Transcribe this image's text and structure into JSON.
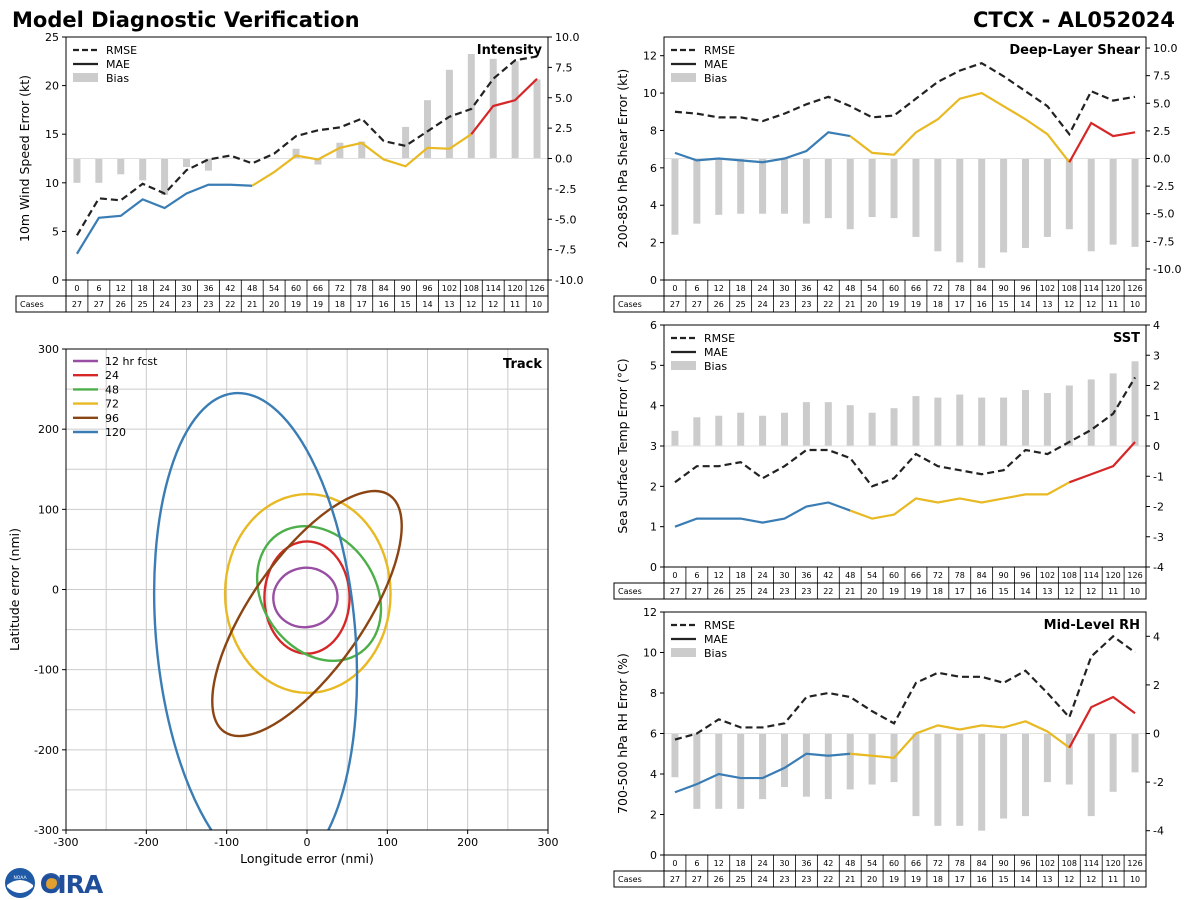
{
  "header": {
    "title_left": "Model Diagnostic Verification",
    "title_right": "CTCX - AL052024"
  },
  "logo": {
    "noaa_text": "NOAA",
    "cira_text": "CIRA"
  },
  "legend_labels": {
    "rmse": "RMSE",
    "mae": "MAE",
    "bias": "Bias"
  },
  "colors": {
    "rmse": "#222222",
    "bias": "#cccccc",
    "seg1": "#3a7db5",
    "seg2": "#e8b923",
    "seg3": "#d62728",
    "grid": "#cccccc",
    "axis": "#000000"
  },
  "cases_label": "Cases",
  "hours": [
    0,
    6,
    12,
    18,
    24,
    30,
    36,
    42,
    48,
    54,
    60,
    66,
    72,
    78,
    84,
    90,
    96,
    102,
    108,
    114,
    120,
    126
  ],
  "cases": [
    27,
    27,
    26,
    25,
    24,
    23,
    23,
    22,
    21,
    20,
    19,
    19,
    18,
    17,
    16,
    15,
    14,
    13,
    12,
    12,
    11,
    10
  ],
  "chart_data": [
    {
      "id": "intensity",
      "type": "line+bar",
      "title": "Intensity",
      "ylabel": "10m Wind Speed Error (kt)",
      "ylim": [
        0,
        25
      ],
      "yticks": [
        0,
        5,
        10,
        15,
        20,
        25
      ],
      "y2lim": [
        -10,
        10
      ],
      "y2ticks": [
        "-10.0",
        "-7.5",
        "-5.0",
        "-2.5",
        "0.0",
        "2.5",
        "5.0",
        "7.5",
        "10.0"
      ],
      "rmse": [
        4.6,
        8.4,
        8.2,
        9.9,
        8.9,
        11.3,
        12.4,
        12.8,
        12.0,
        13.0,
        14.8,
        15.4,
        15.7,
        16.6,
        14.3,
        13.8,
        15.3,
        16.8,
        17.6,
        20.7,
        22.6,
        23.0
      ],
      "mae": [
        2.7,
        6.4,
        6.6,
        8.3,
        7.4,
        8.9,
        9.8,
        9.8,
        9.7,
        11.1,
        12.8,
        12.4,
        13.6,
        14.1,
        12.4,
        11.7,
        13.6,
        13.5,
        15.0,
        17.9,
        18.5,
        20.7
      ],
      "bias": [
        -2.0,
        -2.0,
        -1.3,
        -1.8,
        -3.0,
        -0.7,
        -1.0,
        0.0,
        0.0,
        0.0,
        0.8,
        -0.5,
        1.3,
        1.4,
        0.0,
        2.6,
        4.8,
        7.3,
        8.6,
        8.2,
        8.0,
        6.5
      ]
    },
    {
      "id": "shear",
      "type": "line+bar",
      "title": "Deep-Layer Shear",
      "ylabel": "200-850 hPa Shear Error (kt)",
      "ylim": [
        0,
        13
      ],
      "yticks": [
        0,
        2,
        4,
        6,
        8,
        10,
        12
      ],
      "y2lim": [
        -11,
        11
      ],
      "y2ticks": [
        "-10.0",
        "-7.5",
        "-5.0",
        "-2.5",
        "0.0",
        "2.5",
        "5.0",
        "7.5",
        "10.0"
      ],
      "rmse": [
        9.0,
        8.9,
        8.7,
        8.7,
        8.5,
        8.9,
        9.4,
        9.8,
        9.3,
        8.7,
        8.8,
        9.7,
        10.6,
        11.2,
        11.6,
        10.9,
        10.1,
        9.3,
        7.8,
        10.1,
        9.6,
        9.8
      ],
      "mae": [
        6.8,
        6.4,
        6.5,
        6.4,
        6.3,
        6.5,
        6.9,
        7.9,
        7.7,
        6.8,
        6.7,
        7.9,
        8.6,
        9.7,
        10.0,
        9.3,
        8.6,
        7.8,
        6.3,
        8.4,
        7.7,
        7.9
      ],
      "bias": [
        -6.9,
        -5.9,
        -5.1,
        -5.0,
        -5.0,
        -5.0,
        -5.9,
        -5.4,
        -6.4,
        -5.3,
        -5.4,
        -7.1,
        -8.4,
        -9.4,
        -9.9,
        -8.5,
        -8.1,
        -7.1,
        -6.4,
        -8.4,
        -7.8,
        -8.0
      ]
    },
    {
      "id": "sst",
      "type": "line+bar",
      "title": "SST",
      "ylabel": "Sea Surface Temp Error (°C)",
      "ylim": [
        0,
        6
      ],
      "yticks": [
        0,
        1,
        2,
        3,
        4,
        5,
        6
      ],
      "y2lim": [
        -4,
        4
      ],
      "y2ticks": [
        "-4",
        "-3",
        "-2",
        "-1",
        "0",
        "1",
        "2",
        "3",
        "4"
      ],
      "rmse": [
        2.1,
        2.5,
        2.5,
        2.6,
        2.2,
        2.5,
        2.9,
        2.9,
        2.7,
        2.0,
        2.2,
        2.8,
        2.5,
        2.4,
        2.3,
        2.4,
        2.9,
        2.8,
        3.1,
        3.4,
        3.8,
        4.7
      ],
      "mae": [
        1.0,
        1.2,
        1.2,
        1.2,
        1.1,
        1.2,
        1.5,
        1.6,
        1.4,
        1.2,
        1.3,
        1.7,
        1.6,
        1.7,
        1.6,
        1.7,
        1.8,
        1.8,
        2.1,
        2.3,
        2.5,
        3.1
      ],
      "bias": [
        0.5,
        0.95,
        1.0,
        1.1,
        1.0,
        1.1,
        1.45,
        1.45,
        1.35,
        1.1,
        1.25,
        1.65,
        1.6,
        1.7,
        1.6,
        1.6,
        1.85,
        1.75,
        2.0,
        2.2,
        2.4,
        2.8
      ]
    },
    {
      "id": "rh",
      "type": "line+bar",
      "title": "Mid-Level RH",
      "ylabel": "700-500 hPa RH Error (%)",
      "ylim": [
        0,
        12
      ],
      "yticks": [
        0,
        2,
        4,
        6,
        8,
        10,
        12
      ],
      "y2lim": [
        -5,
        5
      ],
      "y2ticks": [
        "-4",
        "-2",
        "0",
        "2",
        "4"
      ],
      "rmse": [
        5.7,
        6.0,
        6.7,
        6.3,
        6.3,
        6.5,
        7.8,
        8.0,
        7.8,
        7.1,
        6.5,
        8.5,
        9.0,
        8.8,
        8.8,
        8.5,
        9.1,
        8.0,
        6.8,
        9.8,
        10.8,
        10.0
      ],
      "mae": [
        3.1,
        3.5,
        4.0,
        3.8,
        3.8,
        4.3,
        5.0,
        4.9,
        5.0,
        4.9,
        4.8,
        6.0,
        6.4,
        6.2,
        6.4,
        6.3,
        6.6,
        6.1,
        5.3,
        7.3,
        7.8,
        7.0
      ],
      "bias": [
        -1.8,
        -3.1,
        -3.1,
        -3.1,
        -2.7,
        -2.2,
        -2.6,
        -2.7,
        -2.3,
        -2.1,
        -2.0,
        -3.4,
        -3.8,
        -3.8,
        -4.0,
        -3.5,
        -3.4,
        -2.0,
        -2.1,
        -3.4,
        -2.4,
        -1.6
      ]
    },
    {
      "id": "track",
      "type": "ellipse",
      "title": "Track",
      "xlabel": "Longitude error (nmi)",
      "ylabel": "Latitude error (nmi)",
      "xlim": [
        -300,
        300
      ],
      "ylim": [
        -300,
        300
      ],
      "xticks": [
        -300,
        -200,
        -100,
        0,
        100,
        200,
        300
      ],
      "yticks": [
        -300,
        -200,
        -100,
        0,
        100,
        200,
        300
      ],
      "ellipses": [
        {
          "label": "12 hr fcst",
          "color": "#984ea3",
          "cx": -2,
          "cy": -10,
          "rx": 40,
          "ry": 37,
          "angle": -10
        },
        {
          "label": "24",
          "color": "#d62728",
          "cx": 0,
          "cy": -10,
          "rx": 53,
          "ry": 70,
          "angle": 0
        },
        {
          "label": "48",
          "color": "#4daf4a",
          "cx": 15,
          "cy": -5,
          "rx": 70,
          "ry": 90,
          "angle": -35
        },
        {
          "label": "72",
          "color": "#e8b923",
          "cx": 1,
          "cy": -5,
          "rx": 103,
          "ry": 124,
          "angle": 0
        },
        {
          "label": "96",
          "color": "#8b4513",
          "cx": 0,
          "cy": -30,
          "rx": 70,
          "ry": 180,
          "angle": 35
        },
        {
          "label": "120",
          "color": "#3a7db5",
          "cx": -64,
          "cy": -56,
          "rx": 124,
          "ry": 302,
          "angle": -5
        }
      ]
    }
  ]
}
